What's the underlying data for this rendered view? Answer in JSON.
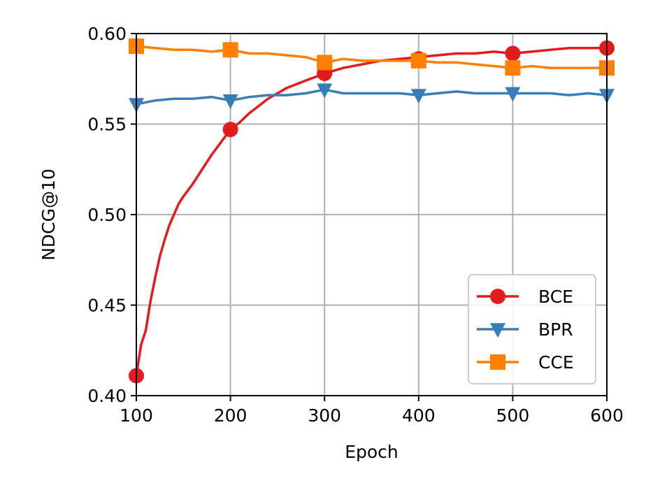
{
  "chart_data": {
    "type": "line",
    "title": "",
    "xlabel": "Epoch",
    "ylabel": "NDCG@10",
    "xlim": [
      100,
      600
    ],
    "ylim": [
      0.4,
      0.6
    ],
    "xticks": [
      100,
      200,
      300,
      400,
      500,
      600
    ],
    "xtick_labels": [
      "100",
      "200",
      "300",
      "400",
      "500",
      "600"
    ],
    "yticks": [
      0.4,
      0.45,
      0.5,
      0.55,
      0.6
    ],
    "ytick_labels": [
      "0.40",
      "0.45",
      "0.50",
      "0.55",
      "0.60"
    ],
    "grid": true,
    "legend_position": "lower-right",
    "series": [
      {
        "name": "BCE",
        "color": "#e41a1c",
        "marker": "circle",
        "x": [
          100,
          105,
          110,
          115,
          120,
          125,
          130,
          135,
          140,
          145,
          150,
          160,
          170,
          180,
          190,
          200,
          210,
          220,
          230,
          240,
          250,
          260,
          270,
          280,
          290,
          300,
          320,
          340,
          360,
          380,
          400,
          420,
          440,
          460,
          480,
          500,
          520,
          540,
          560,
          580,
          600
        ],
        "y": [
          0.411,
          0.428,
          0.436,
          0.452,
          0.465,
          0.477,
          0.486,
          0.494,
          0.5,
          0.506,
          0.51,
          0.517,
          0.525,
          0.533,
          0.54,
          0.547,
          0.551,
          0.556,
          0.56,
          0.564,
          0.567,
          0.57,
          0.572,
          0.574,
          0.576,
          0.578,
          0.581,
          0.583,
          0.585,
          0.586,
          0.587,
          0.588,
          0.589,
          0.589,
          0.59,
          0.589,
          0.59,
          0.591,
          0.592,
          0.592,
          0.592
        ],
        "marker_x": [
          100,
          200,
          300,
          400,
          500,
          600
        ],
        "marker_y": [
          0.411,
          0.547,
          0.578,
          0.586,
          0.589,
          0.592
        ]
      },
      {
        "name": "BPR",
        "color": "#377eb8",
        "marker": "triangle-down",
        "x": [
          100,
          120,
          140,
          160,
          180,
          200,
          220,
          240,
          260,
          280,
          300,
          320,
          340,
          360,
          380,
          400,
          420,
          440,
          460,
          480,
          500,
          520,
          540,
          560,
          580,
          600
        ],
        "y": [
          0.561,
          0.563,
          0.564,
          0.564,
          0.565,
          0.563,
          0.565,
          0.566,
          0.566,
          0.567,
          0.569,
          0.567,
          0.567,
          0.567,
          0.567,
          0.566,
          0.567,
          0.568,
          0.567,
          0.567,
          0.567,
          0.567,
          0.567,
          0.566,
          0.567,
          0.566
        ],
        "marker_x": [
          100,
          200,
          300,
          400,
          500,
          600
        ],
        "marker_y": [
          0.561,
          0.563,
          0.569,
          0.566,
          0.567,
          0.566
        ]
      },
      {
        "name": "CCE",
        "color": "#ff7f00",
        "marker": "square",
        "x": [
          100,
          120,
          140,
          160,
          180,
          200,
          220,
          240,
          260,
          280,
          300,
          320,
          340,
          360,
          380,
          400,
          420,
          440,
          460,
          480,
          500,
          520,
          540,
          560,
          580,
          600
        ],
        "y": [
          0.593,
          0.592,
          0.591,
          0.591,
          0.59,
          0.591,
          0.589,
          0.589,
          0.588,
          0.587,
          0.584,
          0.586,
          0.585,
          0.585,
          0.585,
          0.585,
          0.584,
          0.584,
          0.583,
          0.582,
          0.581,
          0.582,
          0.581,
          0.581,
          0.581,
          0.581
        ],
        "marker_x": [
          100,
          200,
          300,
          400,
          500,
          600
        ],
        "marker_y": [
          0.593,
          0.591,
          0.584,
          0.585,
          0.581,
          0.581
        ]
      }
    ]
  }
}
